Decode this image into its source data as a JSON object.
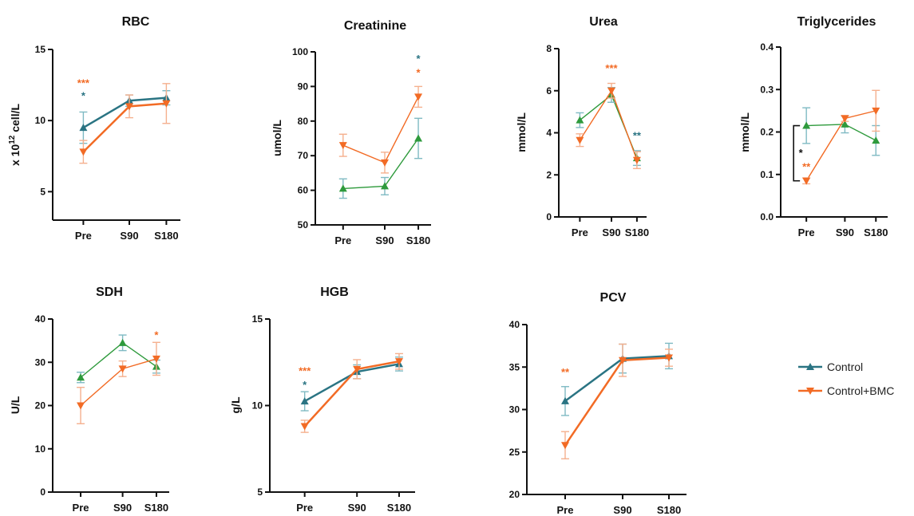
{
  "colors": {
    "control": "#2a7483",
    "bmc": "#f26b25",
    "control_green": "#2e9a3c",
    "black": "#111111"
  },
  "legend": [
    {
      "label": "Control",
      "color": "#2a7483",
      "marker": "triangle-up"
    },
    {
      "label": "Control+BMC",
      "color": "#f26b25",
      "marker": "triangle-down"
    }
  ],
  "chart_data": [
    {
      "type": "line",
      "title": "RBC",
      "ylabel": "x 10^12 cell/L",
      "ylabel_parts": [
        "x 10",
        "12",
        " cell/L"
      ],
      "categories": [
        "Pre",
        "S90",
        "S180"
      ],
      "ylim": [
        3,
        15
      ],
      "yticks": [
        "5",
        "10",
        "15"
      ],
      "ytick_values": [
        5,
        10,
        15
      ],
      "series": [
        {
          "name": "Control",
          "values": [
            9.5,
            11.4,
            11.6
          ],
          "err": [
            1.1,
            0.4,
            0.5
          ]
        },
        {
          "name": "Control+BMC",
          "values": [
            7.8,
            11.0,
            11.2
          ],
          "err": [
            0.8,
            0.8,
            1.4
          ]
        }
      ],
      "annotations": [
        {
          "text": "***",
          "category": "Pre",
          "y": 12.4,
          "series": "Control+BMC"
        },
        {
          "text": "*",
          "category": "Pre",
          "y": 11.5,
          "series": "Control"
        }
      ]
    },
    {
      "type": "line",
      "title": "Creatinine",
      "ylabel": "umol/L",
      "categories": [
        "Pre",
        "S90",
        "S180"
      ],
      "ylim": [
        50,
        100
      ],
      "yticks": [
        "50",
        "60",
        "70",
        "80",
        "90",
        "100"
      ],
      "ytick_values": [
        50,
        60,
        70,
        80,
        90,
        100
      ],
      "series": [
        {
          "name": "Control",
          "values": [
            60.5,
            61.2,
            75.0
          ],
          "err": [
            2.8,
            2.5,
            5.8
          ]
        },
        {
          "name": "Control+BMC",
          "values": [
            73.0,
            68.0,
            87.0
          ],
          "err": [
            3.2,
            3.0,
            3.0
          ]
        }
      ],
      "annotations": [
        {
          "text": "*",
          "category": "S180",
          "y": 97,
          "series": "Control"
        },
        {
          "text": "*",
          "category": "S180",
          "y": 93,
          "series": "Control+BMC"
        }
      ]
    },
    {
      "type": "line",
      "title": "Urea",
      "ylabel": "mmol/L",
      "categories": [
        "Pre",
        "S90",
        "S180"
      ],
      "ylim": [
        0,
        8
      ],
      "yticks": [
        "0",
        "2",
        "4",
        "6",
        "8"
      ],
      "ytick_values": [
        0,
        2,
        4,
        6,
        8
      ],
      "series": [
        {
          "name": "Control",
          "values": [
            4.6,
            5.8,
            2.8
          ],
          "err": [
            0.35,
            0.35,
            0.35
          ]
        },
        {
          "name": "Control+BMC",
          "values": [
            3.65,
            6.0,
            2.7
          ],
          "err": [
            0.3,
            0.35,
            0.4
          ]
        }
      ],
      "annotations": [
        {
          "text": "***",
          "category": "S90",
          "y": 6.9,
          "series": "Control+BMC"
        },
        {
          "text": "**",
          "category": "S180",
          "y": 3.7,
          "series": "Control"
        }
      ]
    },
    {
      "type": "line",
      "title": "Triglycerides",
      "ylabel": "mmol/L",
      "categories": [
        "Pre",
        "S90",
        "S180"
      ],
      "ylim": [
        0,
        0.4
      ],
      "yticks": [
        "0.0",
        "0.1",
        "0.2",
        "0.3",
        "0.4"
      ],
      "ytick_values": [
        0,
        0.1,
        0.2,
        0.3,
        0.4
      ],
      "series": [
        {
          "name": "Control",
          "values": [
            0.215,
            0.218,
            0.18
          ],
          "err": [
            0.042,
            0.02,
            0.035
          ]
        },
        {
          "name": "Control+BMC",
          "values": [
            0.085,
            0.232,
            0.25
          ],
          "err": [
            0.007,
            0.007,
            0.048
          ]
        }
      ],
      "annotations": [
        {
          "text": "**",
          "category": "Pre",
          "y": 0.11,
          "series": "Control+BMC"
        }
      ],
      "bracket": {
        "from": 0.215,
        "to": 0.085,
        "text": "*"
      }
    },
    {
      "type": "line",
      "title": "SDH",
      "ylabel": "U/L",
      "categories": [
        "Pre",
        "S90",
        "S180"
      ],
      "ylim": [
        0,
        40
      ],
      "yticks": [
        "0",
        "10",
        "20",
        "30",
        "40"
      ],
      "ytick_values": [
        0,
        10,
        20,
        30,
        40
      ],
      "series": [
        {
          "name": "Control",
          "values": [
            26.5,
            34.5,
            29.0
          ],
          "err": [
            1.2,
            1.8,
            1.5
          ]
        },
        {
          "name": "Control+BMC",
          "values": [
            20.0,
            28.5,
            30.8
          ],
          "err": [
            4.2,
            1.8,
            3.8
          ]
        }
      ],
      "annotations": [
        {
          "text": "*",
          "category": "S180",
          "y": 35.5,
          "series": "Control+BMC"
        }
      ]
    },
    {
      "type": "line",
      "title": "HGB",
      "ylabel": "g/L",
      "categories": [
        "Pre",
        "S90",
        "S180"
      ],
      "ylim": [
        5,
        15
      ],
      "yticks": [
        "5",
        "10",
        "15"
      ],
      "ytick_values": [
        5,
        10,
        15
      ],
      "series": [
        {
          "name": "Control",
          "values": [
            10.25,
            11.95,
            12.4
          ],
          "err": [
            0.55,
            0.4,
            0.4
          ]
        },
        {
          "name": "Control+BMC",
          "values": [
            8.8,
            12.1,
            12.55
          ],
          "err": [
            0.35,
            0.55,
            0.45
          ]
        }
      ],
      "annotations": [
        {
          "text": "***",
          "category": "Pre",
          "y": 11.8,
          "series": "Control+BMC"
        },
        {
          "text": "*",
          "category": "Pre",
          "y": 11.0,
          "series": "Control"
        }
      ]
    },
    {
      "type": "line",
      "title": "PCV",
      "ylabel": "",
      "categories": [
        "Pre",
        "S90",
        "S180"
      ],
      "ylim": [
        20,
        40
      ],
      "yticks": [
        "20",
        "25",
        "30",
        "35",
        "40"
      ],
      "ytick_values": [
        20,
        25,
        30,
        35,
        40
      ],
      "series": [
        {
          "name": "Control",
          "values": [
            31.0,
            36.0,
            36.3
          ],
          "err": [
            1.7,
            1.7,
            1.5
          ]
        },
        {
          "name": "Control+BMC",
          "values": [
            25.8,
            35.8,
            36.1
          ],
          "err": [
            1.6,
            1.9,
            1.0
          ]
        }
      ],
      "annotations": [
        {
          "text": "**",
          "category": "Pre",
          "y": 34.0,
          "series": "Control+BMC"
        }
      ]
    }
  ]
}
